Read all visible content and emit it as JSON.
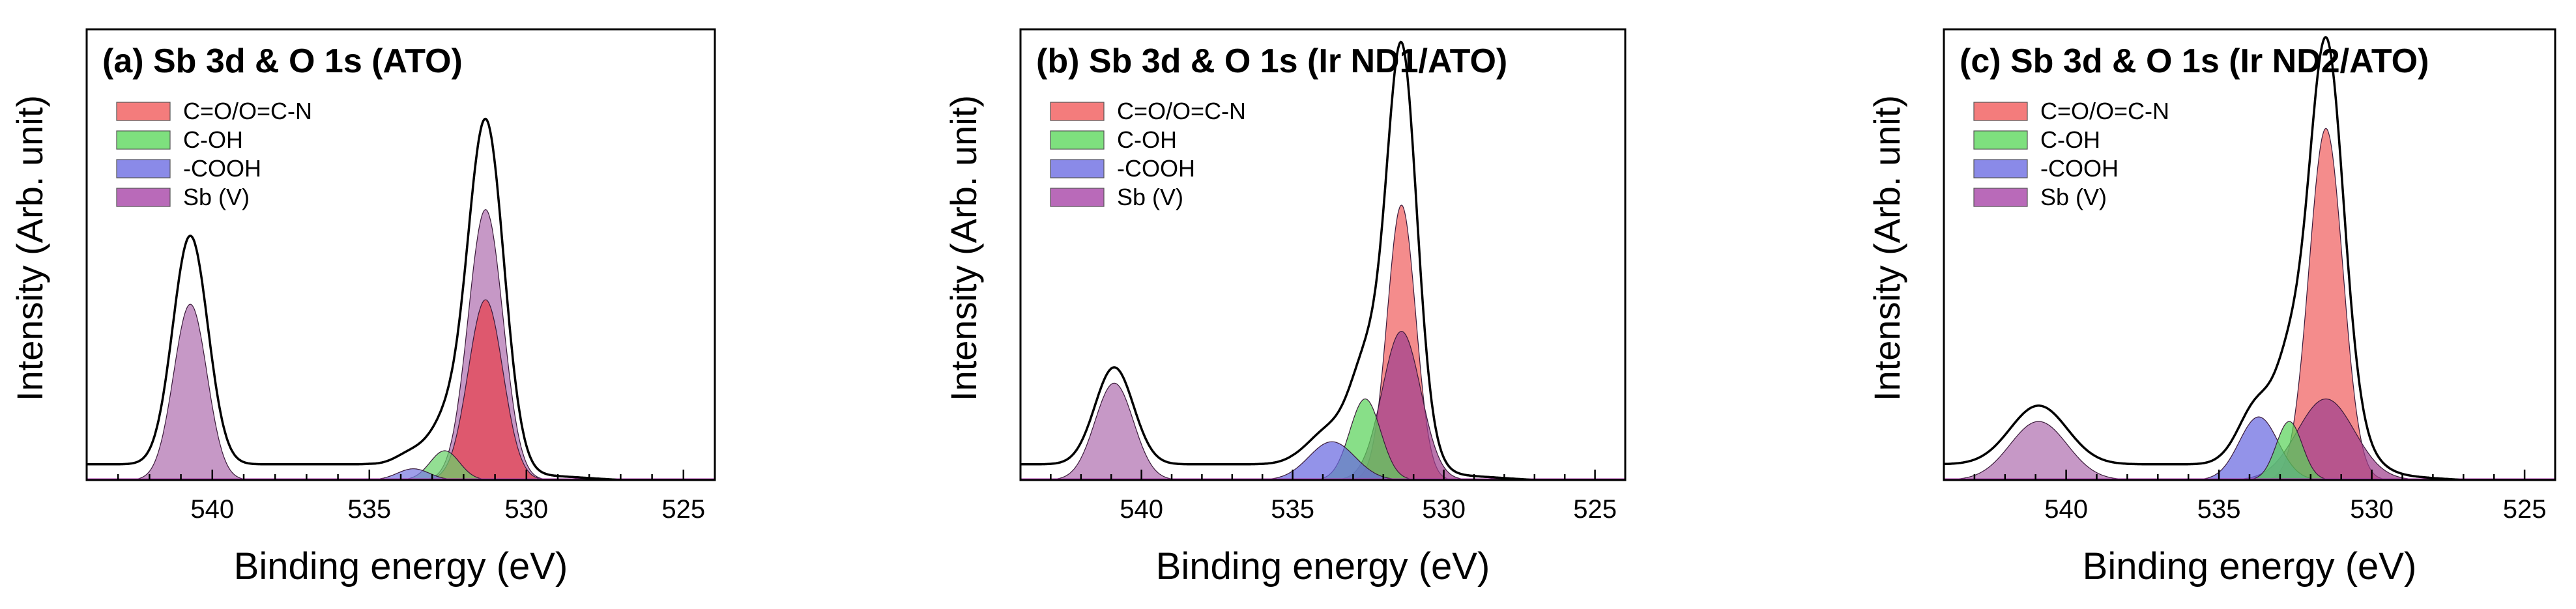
{
  "chart_data": [
    {
      "type": "area",
      "title": "(a) Sb 3d & O 1s (ATO)",
      "xlabel": "Binding energy (eV)",
      "ylabel": "Intensity (Arb. unit)",
      "xlim": [
        544,
        524
      ],
      "ylim": [
        0,
        1.0
      ],
      "x_reversed": true,
      "xticks": [
        540,
        535,
        530,
        525
      ],
      "legend_position": "top-left",
      "legend": [
        {
          "label": "C=O/O=C-N",
          "color": "#f47c7c"
        },
        {
          "label": "C-OH",
          "color": "#7ee07e"
        },
        {
          "label": "-COOH",
          "color": "#8a8ae8"
        },
        {
          "label": "Sb (V)",
          "color": "#b96ab9"
        }
      ],
      "envelope_offset": 0.035,
      "components": [
        {
          "name": "Sb (V) 3d3/2",
          "legend_ref": "Sb (V)",
          "color": "#b070b0",
          "center": 540.7,
          "fwhm": 1.25,
          "height": 0.39
        },
        {
          "name": "Sb (V) 3d5/2",
          "legend_ref": "Sb (V)",
          "color": "#b070b0",
          "center": 531.3,
          "fwhm": 1.3,
          "height": 0.6
        },
        {
          "name": "C=O/O=C-N",
          "legend_ref": "C=O/O=C-N",
          "color": "#e8404c",
          "center": 531.3,
          "fwhm": 1.3,
          "height": 0.4
        },
        {
          "name": "C-OH",
          "legend_ref": "C-OH",
          "color": "#6ad26a",
          "center": 532.6,
          "fwhm": 1.1,
          "height": 0.065
        },
        {
          "name": "-COOH",
          "legend_ref": "-COOH",
          "color": "#7a7ae2",
          "center": 533.6,
          "fwhm": 1.2,
          "height": 0.025
        }
      ]
    },
    {
      "type": "area",
      "title": "(b) Sb 3d & O 1s (Ir ND1/ATO)",
      "xlabel": "Binding energy (eV)",
      "ylabel": "Intensity (Arb. unit)",
      "xlim": [
        544,
        524
      ],
      "ylim": [
        0,
        1.0
      ],
      "x_reversed": true,
      "xticks": [
        540,
        535,
        530,
        525
      ],
      "legend_position": "top-left",
      "legend": [
        {
          "label": "C=O/O=C-N",
          "color": "#f47c7c"
        },
        {
          "label": "C-OH",
          "color": "#7ee07e"
        },
        {
          "label": "-COOH",
          "color": "#8a8ae8"
        },
        {
          "label": "Sb (V)",
          "color": "#b96ab9"
        }
      ],
      "envelope_offset": 0.035,
      "components": [
        {
          "name": "Sb (V) 3d3/2",
          "legend_ref": "Sb (V)",
          "color": "#b070b0",
          "center": 540.9,
          "fwhm": 1.5,
          "height": 0.215
        },
        {
          "name": "C=O/O=C-N",
          "legend_ref": "C=O/O=C-N",
          "color": "#f06060",
          "center": 531.4,
          "fwhm": 1.1,
          "height": 0.61
        },
        {
          "name": "Sb (V) 3d5/2",
          "legend_ref": "Sb (V)",
          "color": "#a0408e",
          "center": 531.4,
          "fwhm": 1.5,
          "height": 0.33
        },
        {
          "name": "C-OH",
          "legend_ref": "C-OH",
          "color": "#5ad25a",
          "center": 532.6,
          "fwhm": 1.2,
          "height": 0.18
        },
        {
          "name": "-COOH",
          "legend_ref": "-COOH",
          "color": "#6a6ae0",
          "center": 533.7,
          "fwhm": 1.8,
          "height": 0.085
        }
      ]
    },
    {
      "type": "area",
      "title": "(c) Sb 3d & O 1s (Ir ND2/ATO)",
      "xlabel": "Binding energy (eV)",
      "ylabel": "Intensity (Arb. unit)",
      "xlim": [
        544,
        524
      ],
      "ylim": [
        0,
        1.0
      ],
      "x_reversed": true,
      "xticks": [
        540,
        535,
        530,
        525
      ],
      "legend_position": "top-left",
      "legend": [
        {
          "label": "C=O/O=C-N",
          "color": "#f47c7c"
        },
        {
          "label": "C-OH",
          "color": "#7ee07e"
        },
        {
          "label": "-COOH",
          "color": "#8a8ae8"
        },
        {
          "label": "Sb (V)",
          "color": "#b96ab9"
        }
      ],
      "envelope_offset": 0.035,
      "components": [
        {
          "name": "Sb (V) 3d3/2",
          "legend_ref": "Sb (V)",
          "color": "#b070b0",
          "center": 540.9,
          "fwhm": 2.2,
          "height": 0.13
        },
        {
          "name": "C=O/O=C-N",
          "legend_ref": "C=O/O=C-N",
          "color": "#f06060",
          "center": 531.5,
          "fwhm": 1.3,
          "height": 0.78
        },
        {
          "name": "Sb (V) 3d5/2",
          "legend_ref": "Sb (V)",
          "color": "#a0408e",
          "center": 531.5,
          "fwhm": 2.2,
          "height": 0.18
        },
        {
          "name": "-COOH",
          "legend_ref": "-COOH",
          "color": "#6a6ae0",
          "center": 533.7,
          "fwhm": 1.5,
          "height": 0.14
        },
        {
          "name": "C-OH",
          "legend_ref": "C-OH",
          "color": "#5ad25a",
          "center": 532.7,
          "fwhm": 1.0,
          "height": 0.13
        }
      ]
    }
  ]
}
